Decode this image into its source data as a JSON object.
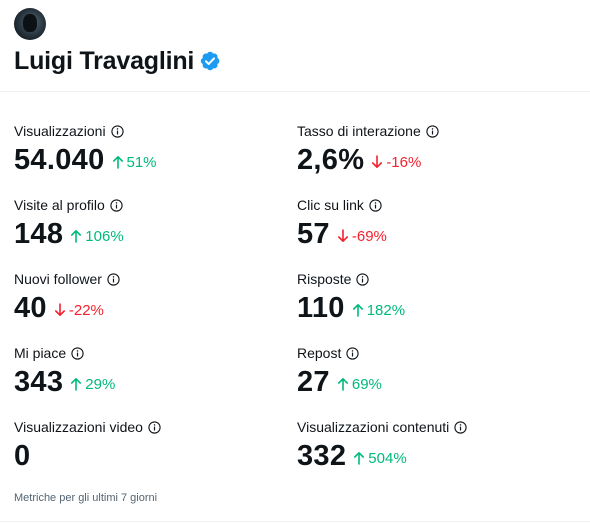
{
  "profile": {
    "name": "Luigi Travaglini"
  },
  "metrics_left": [
    {
      "label": "Visualizzazioni",
      "value": "54.040",
      "delta": "51%",
      "trend": "up"
    },
    {
      "label": "Visite al profilo",
      "value": "148",
      "delta": "106%",
      "trend": "up"
    },
    {
      "label": "Nuovi follower",
      "value": "40",
      "delta": "-22%",
      "trend": "down"
    },
    {
      "label": "Mi piace",
      "value": "343",
      "delta": "29%",
      "trend": "up"
    },
    {
      "label": "Visualizzazioni video",
      "value": "0",
      "delta": "",
      "trend": "none"
    }
  ],
  "metrics_right": [
    {
      "label": "Tasso di interazione",
      "value": "2,6%",
      "delta": "-16%",
      "trend": "down"
    },
    {
      "label": "Clic su link",
      "value": "57",
      "delta": "-69%",
      "trend": "down"
    },
    {
      "label": "Risposte",
      "value": "110",
      "delta": "182%",
      "trend": "up"
    },
    {
      "label": "Repost",
      "value": "27",
      "delta": "69%",
      "trend": "up"
    },
    {
      "label": "Visualizzazioni contenuti",
      "value": "332",
      "delta": "504%",
      "trend": "up"
    }
  ],
  "footnote": "Metriche per gli ultimi 7 giorni",
  "colors": {
    "up": "#00ba7c",
    "down": "#f4212e",
    "verified": "#1d9bf0",
    "text": "#0f1419",
    "muted": "#536471"
  },
  "icons": {
    "verified": "verified-badge-icon",
    "info": "info-icon",
    "up": "arrow-up-icon",
    "down": "arrow-down-icon"
  }
}
